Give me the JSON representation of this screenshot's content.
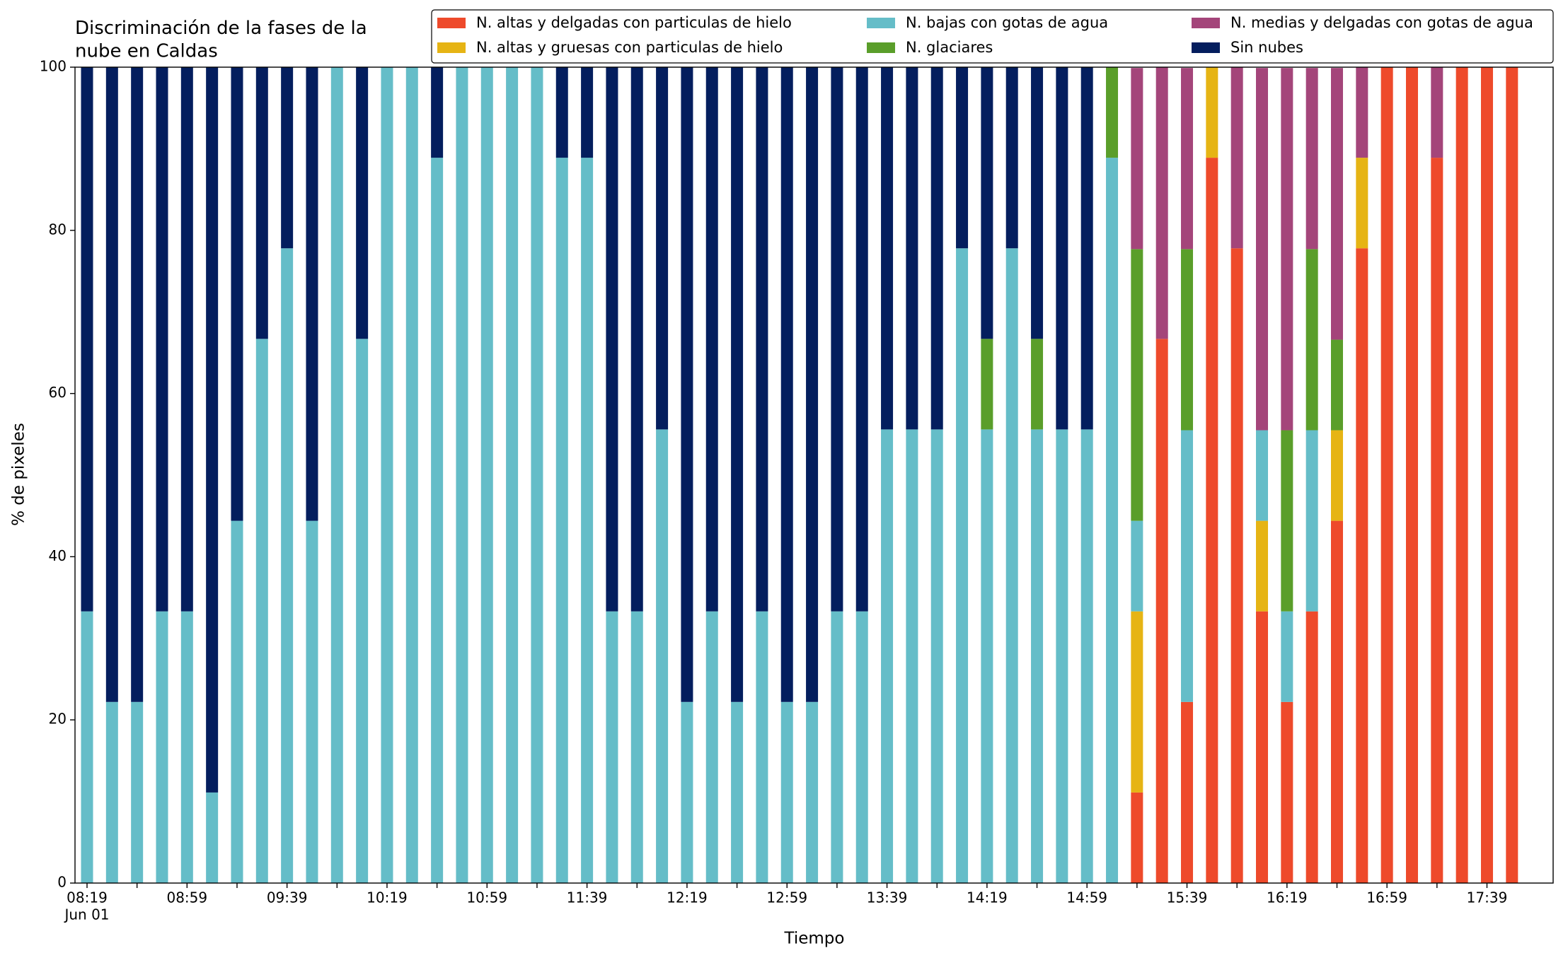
{
  "chart_data": {
    "type": "stacked_bar",
    "title": "Discriminación de la fases de la\nnube en Caldas",
    "x_label": "Tiempo",
    "y_label": "% de pixeles",
    "x_date_label": "Jun 01",
    "categories": [
      "08:19",
      null,
      null,
      null,
      "08:59",
      null,
      null,
      null,
      "09:39",
      null,
      null,
      null,
      "10:19",
      null,
      null,
      null,
      "10:59",
      null,
      null,
      null,
      "11:39",
      null,
      null,
      null,
      "12:19",
      null,
      null,
      null,
      "12:59",
      null,
      null,
      null,
      "13:39",
      null,
      null,
      null,
      "14:19",
      null,
      null,
      null,
      "14:59",
      null,
      null,
      null,
      "15:39",
      null,
      null,
      null,
      "16:19",
      null,
      null,
      null,
      "16:59",
      null,
      null,
      null,
      "17:39",
      null
    ],
    "ylim": [
      0,
      100
    ],
    "yticks": [
      0,
      20,
      40,
      60,
      80,
      100
    ],
    "series": [
      {
        "name": "N. altas y delgadas con particulas de hielo",
        "color": "#ee4a2b",
        "values": [
          0,
          0,
          0,
          0,
          0,
          0,
          0,
          0,
          0,
          0,
          0,
          0,
          0,
          0,
          0,
          0,
          0,
          0,
          0,
          0,
          0,
          0,
          0,
          0,
          0,
          0,
          0,
          0,
          0,
          0,
          0,
          0,
          0,
          0,
          0,
          0,
          0,
          0,
          0,
          0,
          0,
          0,
          11.1,
          66.7,
          22.2,
          88.9,
          77.8,
          33.3,
          22.2,
          33.3,
          44.4,
          77.8,
          100,
          100,
          88.9,
          100,
          100,
          100
        ]
      },
      {
        "name": "N. altas y gruesas con particulas de hielo",
        "color": "#e6b414",
        "values": [
          0,
          0,
          0,
          0,
          0,
          0,
          0,
          0,
          0,
          0,
          0,
          0,
          0,
          0,
          0,
          0,
          0,
          0,
          0,
          0,
          0,
          0,
          0,
          0,
          0,
          0,
          0,
          0,
          0,
          0,
          0,
          0,
          0,
          0,
          0,
          0,
          0,
          0,
          0,
          0,
          0,
          0,
          22.2,
          0,
          0,
          11.1,
          0,
          11.1,
          0,
          0,
          11.1,
          11.1,
          0,
          0,
          0,
          0,
          0,
          0
        ]
      },
      {
        "name": "N. bajas con gotas de agua",
        "color": "#65bdc8",
        "values": [
          33.3,
          22.2,
          22.2,
          33.3,
          33.3,
          11.1,
          44.4,
          66.7,
          77.8,
          44.4,
          100,
          66.7,
          100,
          100,
          88.9,
          100,
          100,
          100,
          100,
          88.9,
          88.9,
          33.3,
          33.3,
          55.6,
          22.2,
          33.3,
          22.2,
          33.3,
          22.2,
          22.2,
          33.3,
          33.3,
          55.6,
          55.6,
          55.6,
          77.8,
          55.6,
          77.8,
          55.6,
          55.6,
          55.6,
          88.9,
          11.1,
          0,
          33.3,
          0,
          0,
          11.1,
          11.1,
          22.2,
          0,
          0,
          0,
          0,
          0,
          0,
          0,
          0
        ]
      },
      {
        "name": "N. glaciares",
        "color": "#5a9e2a",
        "values": [
          0,
          0,
          0,
          0,
          0,
          0,
          0,
          0,
          0,
          0,
          0,
          0,
          0,
          0,
          0,
          0,
          0,
          0,
          0,
          0,
          0,
          0,
          0,
          0,
          0,
          0,
          0,
          0,
          0,
          0,
          0,
          0,
          0,
          0,
          0,
          0,
          11.1,
          0,
          11.1,
          0,
          0,
          11.1,
          33.3,
          0,
          22.2,
          0,
          0,
          0,
          22.2,
          22.2,
          11.1,
          0,
          0,
          0,
          0,
          0,
          0,
          0
        ]
      },
      {
        "name": "N. medias y delgadas con gotas de agua",
        "color": "#a4457a",
        "values": [
          0,
          0,
          0,
          0,
          0,
          0,
          0,
          0,
          0,
          0,
          0,
          0,
          0,
          0,
          0,
          0,
          0,
          0,
          0,
          0,
          0,
          0,
          0,
          0,
          0,
          0,
          0,
          0,
          0,
          0,
          0,
          0,
          0,
          0,
          0,
          0,
          0,
          0,
          0,
          0,
          0,
          0,
          22.2,
          33.3,
          22.2,
          0,
          22.2,
          44.4,
          44.4,
          22.2,
          33.3,
          11.1,
          0,
          0,
          11.1,
          0,
          0,
          0
        ]
      },
      {
        "name": "Sin nubes",
        "color": "#041e5e",
        "values": [
          66.7,
          77.8,
          77.8,
          66.7,
          66.7,
          88.9,
          55.6,
          33.3,
          22.2,
          55.6,
          0,
          33.3,
          0,
          0,
          11.1,
          0,
          0,
          0,
          0,
          11.1,
          11.1,
          66.7,
          66.7,
          44.4,
          77.8,
          66.7,
          77.8,
          66.7,
          77.8,
          77.8,
          66.7,
          66.7,
          44.4,
          44.4,
          44.4,
          22.2,
          33.3,
          22.2,
          33.3,
          44.4,
          44.4,
          0,
          0,
          0,
          0,
          0,
          0,
          0,
          0,
          0,
          0,
          0,
          0,
          0,
          0,
          0,
          0,
          0
        ]
      }
    ]
  }
}
